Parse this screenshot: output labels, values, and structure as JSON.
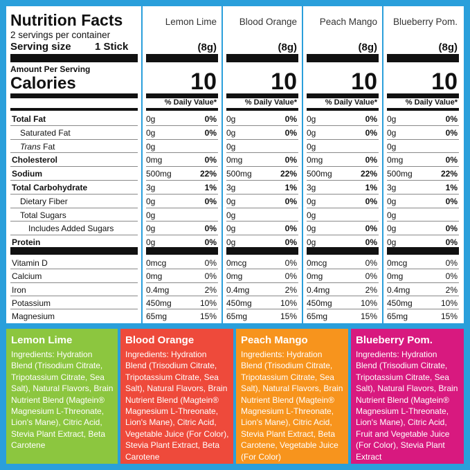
{
  "panel": {
    "title": "Nutrition Facts",
    "servings": "2 servings per container",
    "serving_size_label": "Serving size",
    "serving_size_value": "1 Stick",
    "amount_per_serving": "Amount Per Serving",
    "calories_label": "Calories",
    "nutrients": [
      {
        "name": "Total Fat",
        "bold": true,
        "indent": 0
      },
      {
        "name": "Saturated Fat",
        "bold": false,
        "indent": 1
      },
      {
        "name_italic": "Trans",
        "name": "Fat",
        "bold": false,
        "indent": 1
      },
      {
        "name": "Cholesterol",
        "bold": true,
        "indent": 0
      },
      {
        "name": "Sodium",
        "bold": true,
        "indent": 0
      },
      {
        "name": "Total Carbohydrate",
        "bold": true,
        "indent": 0
      },
      {
        "name": "Dietary Fiber",
        "bold": false,
        "indent": 1
      },
      {
        "name": "Total Sugars",
        "bold": false,
        "indent": 1
      },
      {
        "name": "Includes Added Sugars",
        "bold": false,
        "indent": 2
      },
      {
        "name": "Protein",
        "bold": true,
        "indent": 0
      }
    ],
    "vitamins": [
      "Vitamin D",
      "Calcium",
      "Iron",
      "Potassium",
      "Magnesium"
    ]
  },
  "flavors": [
    {
      "name": "Lemon Lime",
      "serving_grams": "(8g)",
      "calories": 10,
      "dv_header": "% Daily Value*",
      "nutrients": [
        {
          "amount": "0g",
          "dv": "0%"
        },
        {
          "amount": "0g",
          "dv": "0%"
        },
        {
          "amount": "0g"
        },
        {
          "amount": "0mg",
          "dv": "0%"
        },
        {
          "amount": "500mg",
          "dv": "22%"
        },
        {
          "amount": "3g",
          "dv": "1%"
        },
        {
          "amount": "0g",
          "dv": "0%"
        },
        {
          "amount": "0g"
        },
        {
          "amount": "0g",
          "dv": "0%"
        },
        {
          "amount": "0g",
          "dv": "0%"
        }
      ],
      "vitamins": [
        {
          "amount": "0mcg",
          "dv": "0%"
        },
        {
          "amount": "0mg",
          "dv": "0%"
        },
        {
          "amount": "0.4mg",
          "dv": "2%"
        },
        {
          "amount": "450mg",
          "dv": "10%"
        },
        {
          "amount": "65mg",
          "dv": "15%"
        }
      ]
    },
    {
      "name": "Blood Orange",
      "serving_grams": "(8g)",
      "calories": 10,
      "dv_header": "% Daily Value*",
      "nutrients": [
        {
          "amount": "0g",
          "dv": "0%"
        },
        {
          "amount": "0g",
          "dv": "0%"
        },
        {
          "amount": "0g"
        },
        {
          "amount": "0mg",
          "dv": "0%"
        },
        {
          "amount": "500mg",
          "dv": "22%"
        },
        {
          "amount": "3g",
          "dv": "1%"
        },
        {
          "amount": "0g",
          "dv": "0%"
        },
        {
          "amount": "0g"
        },
        {
          "amount": "0g",
          "dv": "0%"
        },
        {
          "amount": "0g",
          "dv": "0%"
        }
      ],
      "vitamins": [
        {
          "amount": "0mcg",
          "dv": "0%"
        },
        {
          "amount": "0mg",
          "dv": "0%"
        },
        {
          "amount": "0.4mg",
          "dv": "2%"
        },
        {
          "amount": "450mg",
          "dv": "10%"
        },
        {
          "amount": "65mg",
          "dv": "15%"
        }
      ]
    },
    {
      "name": "Peach Mango",
      "serving_grams": "(8g)",
      "calories": 10,
      "dv_header": "% Daily Value*",
      "nutrients": [
        {
          "amount": "0g",
          "dv": "0%"
        },
        {
          "amount": "0g",
          "dv": "0%"
        },
        {
          "amount": "0g"
        },
        {
          "amount": "0mg",
          "dv": "0%"
        },
        {
          "amount": "500mg",
          "dv": "22%"
        },
        {
          "amount": "3g",
          "dv": "1%"
        },
        {
          "amount": "0g",
          "dv": "0%"
        },
        {
          "amount": "0g"
        },
        {
          "amount": "0g",
          "dv": "0%"
        },
        {
          "amount": "0g",
          "dv": "0%"
        }
      ],
      "vitamins": [
        {
          "amount": "0mcg",
          "dv": "0%"
        },
        {
          "amount": "0mg",
          "dv": "0%"
        },
        {
          "amount": "0.4mg",
          "dv": "2%"
        },
        {
          "amount": "450mg",
          "dv": "10%"
        },
        {
          "amount": "65mg",
          "dv": "15%"
        }
      ]
    },
    {
      "name": "Blueberry Pom.",
      "serving_grams": "(8g)",
      "calories": 10,
      "dv_header": "% Daily Value*",
      "nutrients": [
        {
          "amount": "0g",
          "dv": "0%"
        },
        {
          "amount": "0g",
          "dv": "0%"
        },
        {
          "amount": "0g"
        },
        {
          "amount": "0mg",
          "dv": "0%"
        },
        {
          "amount": "500mg",
          "dv": "22%"
        },
        {
          "amount": "3g",
          "dv": "1%"
        },
        {
          "amount": "0g",
          "dv": "0%"
        },
        {
          "amount": "0g"
        },
        {
          "amount": "0g",
          "dv": "0%"
        },
        {
          "amount": "0g",
          "dv": "0%"
        }
      ],
      "vitamins": [
        {
          "amount": "0mcg",
          "dv": "0%"
        },
        {
          "amount": "0mg",
          "dv": "0%"
        },
        {
          "amount": "0.4mg",
          "dv": "2%"
        },
        {
          "amount": "450mg",
          "dv": "10%"
        },
        {
          "amount": "65mg",
          "dv": "15%"
        }
      ]
    }
  ],
  "ingredients": [
    {
      "title": "Lemon Lime",
      "color": "#8cc63f",
      "text": "Ingredients: Hydration Blend (Trisodium Citrate, Tripotassium Citrate, Sea Salt), Natural Flavors, Brain Nutrient Blend (Magtein® Magnesium L-Threonate, Lion's Mane), Citric Acid, Stevia Plant Extract, Beta Carotene"
    },
    {
      "title": "Blood Orange",
      "color": "#ee4a3b",
      "text": "Ingredients: Hydration Blend (Trisodium Citrate, Tripotassium Citrate, Sea Salt), Natural Flavors, Brain Nutrient Blend (Magtein® Magnesium L-Threonate, Lion's Mane), Citric Acid, Vegetable Juice (For Color), Stevia Plant Extract, Beta Carotene"
    },
    {
      "title": "Peach Mango",
      "color": "#f7941d",
      "text": "Ingredients: Hydration Blend (Trisodium Citrate, Tripotassium Citrate, Sea Salt), Natural Flavors, Brain Nutrient Blend (Magtein® Magnesium L-Threonate, Lion's Mane), Citric Acid, Stevia Plant Extract, Beta Carotene, Vegetable Juice (For Color)"
    },
    {
      "title": "Blueberry Pom.",
      "color": "#d8197f",
      "text": "Ingredients: Hydration Blend (Trisodium Citrate, Tripotassium Citrate, Sea Salt), Natural Flavors, Brain Nutrient Blend (Magtein® Magnesium L-Threonate, Lion's Mane), Citric Acid, Fruit and Vegetable Juice (For Color), Stevia Plant Extract"
    }
  ]
}
